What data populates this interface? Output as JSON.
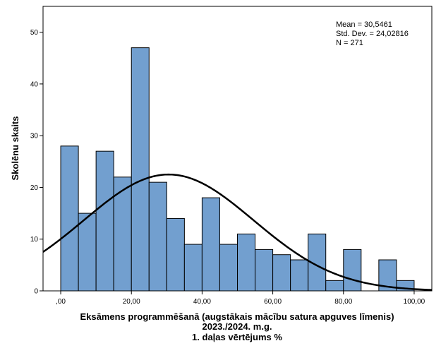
{
  "chart_data": {
    "type": "bar",
    "subtype": "histogram",
    "xlabel_lines": [
      "Eksāmens programmēšanā (augstākais mācību satura apguves līmenis)",
      "2023./2024. m.g.",
      "1. daļas vērtējums %"
    ],
    "ylabel": "Skolēnu skaits",
    "bin_width": 5,
    "bins_start": [
      0,
      5,
      10,
      15,
      20,
      25,
      30,
      35,
      40,
      45,
      50,
      55,
      60,
      65,
      70,
      75,
      80,
      85,
      90,
      95
    ],
    "values": [
      28,
      15,
      27,
      22,
      47,
      21,
      14,
      9,
      18,
      9,
      11,
      8,
      7,
      6,
      11,
      2,
      8,
      0,
      6,
      2
    ],
    "xlim": [
      -5,
      105
    ],
    "ylim": [
      0,
      55
    ],
    "x_ticks": [
      0,
      20,
      40,
      60,
      80,
      100
    ],
    "x_tick_labels": [
      ",00",
      "20,00",
      "40,00",
      "60,00",
      "80,00",
      "100,00"
    ],
    "y_ticks": [
      0,
      10,
      20,
      30,
      40,
      50
    ],
    "y_tick_labels": [
      "0",
      "10",
      "20",
      "30",
      "40",
      "50"
    ],
    "normal_curve": {
      "mean": 30.5461,
      "sd": 24.02816,
      "n": 271
    },
    "stats_lines": [
      "Mean = 30,5461",
      "Std. Dev. = 24,02816",
      "N = 271"
    ],
    "bar_color": "#729fcf",
    "bar_stroke": "#000000",
    "curve_color": "#000000"
  }
}
